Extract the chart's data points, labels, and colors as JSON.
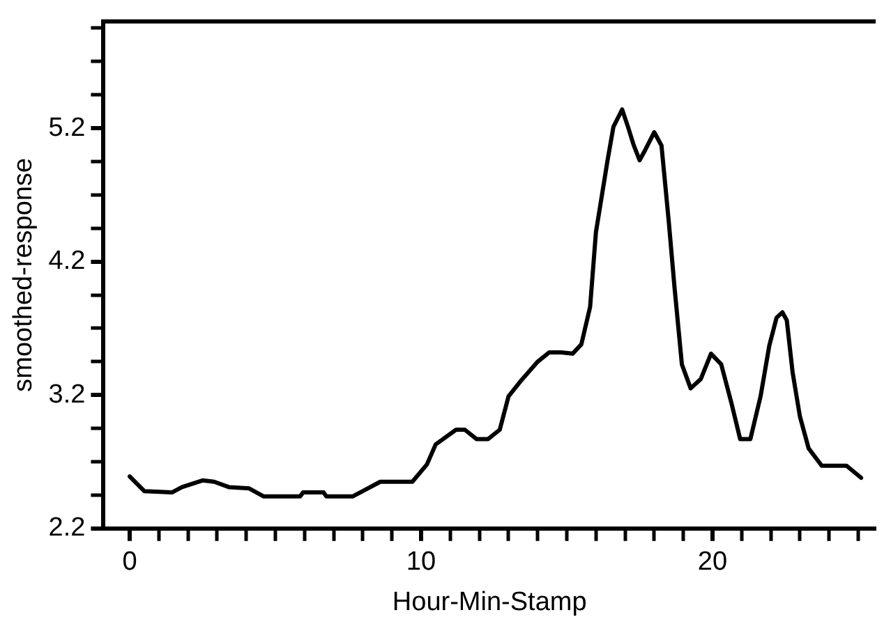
{
  "chart_data": {
    "type": "line",
    "xlabel": "Hour-Min-Stamp",
    "ylabel": "smoothed-response",
    "xlim": [
      -0.9,
      25.6
    ],
    "ylim": [
      2.2,
      6.0
    ],
    "xticks": [
      0,
      {
        "value": 1,
        "label": null
      },
      {
        "value": 2,
        "label": null
      },
      {
        "value": 3,
        "label": null
      },
      {
        "value": 4,
        "label": null
      },
      {
        "value": 5,
        "label": null
      },
      {
        "value": 6,
        "label": null
      },
      {
        "value": 7,
        "label": null
      },
      {
        "value": 8,
        "label": null
      },
      {
        "value": 9,
        "label": null
      },
      10,
      {
        "value": 11,
        "label": null
      },
      {
        "value": 12,
        "label": null
      },
      {
        "value": 13,
        "label": null
      },
      {
        "value": 14,
        "label": null
      },
      {
        "value": 15,
        "label": null
      },
      {
        "value": 16,
        "label": null
      },
      {
        "value": 17,
        "label": null
      },
      {
        "value": 18,
        "label": null
      },
      {
        "value": 19,
        "label": null
      },
      20,
      {
        "value": 21,
        "label": null
      },
      {
        "value": 22,
        "label": null
      },
      {
        "value": 23,
        "label": null
      },
      {
        "value": 24,
        "label": null
      },
      {
        "value": 25,
        "label": null
      }
    ],
    "yticks": [
      2.2,
      {
        "value": 2.45,
        "label": null
      },
      {
        "value": 2.7,
        "label": null
      },
      {
        "value": 2.95,
        "label": null
      },
      3.2,
      {
        "value": 3.45,
        "label": null
      },
      {
        "value": 3.7,
        "label": null
      },
      {
        "value": 3.95,
        "label": null
      },
      4.2,
      {
        "value": 4.45,
        "label": null
      },
      {
        "value": 4.7,
        "label": null
      },
      {
        "value": 4.95,
        "label": null
      },
      5.2,
      {
        "value": 5.45,
        "label": null
      },
      {
        "value": 5.7,
        "label": null
      },
      {
        "value": 5.95,
        "label": null
      }
    ],
    "grid": false,
    "legend": false,
    "marker": "none",
    "line_style": "solid",
    "series": [
      {
        "color": "#000000",
        "x": [
          0,
          0.5,
          1.45,
          1.8,
          2.5,
          2.9,
          3.4,
          4.1,
          4.6,
          5.85,
          5.95,
          6.65,
          6.75,
          7.65,
          8.0,
          8.6,
          9.7,
          10.2,
          10.5,
          11.2,
          11.5,
          11.9,
          12.3,
          12.7,
          13.0,
          13.4,
          14.0,
          14.4,
          14.8,
          15.2,
          15.5,
          15.8,
          16.0,
          16.4,
          16.6,
          16.9,
          17.1,
          17.3,
          17.5,
          17.7,
          18.0,
          18.25,
          18.5,
          18.7,
          18.95,
          19.25,
          19.6,
          19.95,
          20.3,
          20.65,
          20.95,
          21.3,
          21.65,
          21.95,
          22.2,
          22.4,
          22.55,
          22.75,
          23.0,
          23.3,
          23.75,
          24.6,
          25.1
        ],
        "values": [
          2.59,
          2.48,
          2.47,
          2.51,
          2.56,
          2.55,
          2.51,
          2.5,
          2.44,
          2.44,
          2.47,
          2.47,
          2.44,
          2.44,
          2.48,
          2.55,
          2.55,
          2.68,
          2.83,
          2.94,
          2.94,
          2.87,
          2.87,
          2.94,
          3.19,
          3.3,
          3.45,
          3.52,
          3.52,
          3.51,
          3.58,
          3.86,
          4.42,
          4.96,
          5.21,
          5.34,
          5.21,
          5.07,
          4.96,
          5.04,
          5.17,
          5.07,
          4.5,
          4.0,
          3.43,
          3.25,
          3.32,
          3.51,
          3.43,
          3.14,
          2.87,
          2.87,
          3.19,
          3.57,
          3.78,
          3.82,
          3.76,
          3.37,
          3.04,
          2.8,
          2.67,
          2.67,
          2.58
        ]
      }
    ]
  }
}
